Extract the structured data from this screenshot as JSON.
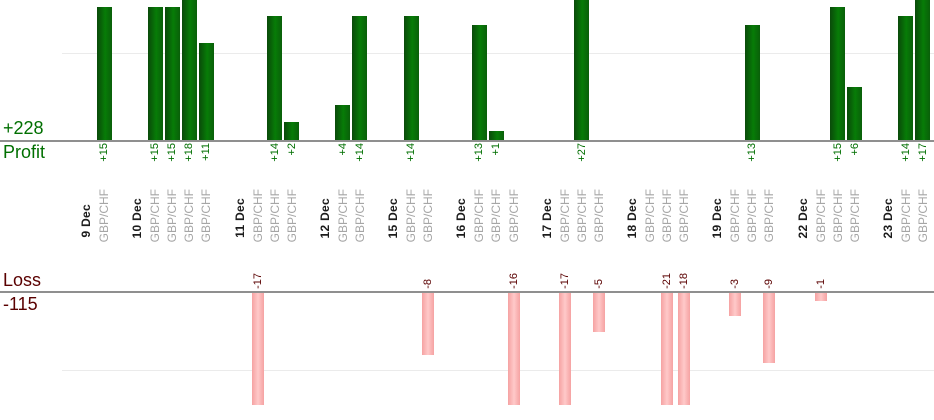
{
  "chart_data": {
    "type": "bar",
    "pair": "GBP/CHF",
    "profit": {
      "total_label": "+228",
      "axis_label": "Profit",
      "total_value": 228
    },
    "loss": {
      "axis_label": "Loss",
      "total_label": "-115",
      "total_value": -115
    },
    "groups": [
      {
        "date": "9 Dec",
        "trades": [
          15
        ]
      },
      {
        "date": "10 Dec",
        "trades": [
          15,
          15,
          18,
          11
        ]
      },
      {
        "date": "11 Dec",
        "trades": [
          -17,
          14,
          2
        ]
      },
      {
        "date": "12 Dec",
        "trades": [
          4,
          14
        ]
      },
      {
        "date": "15 Dec",
        "trades": [
          14,
          -8
        ]
      },
      {
        "date": "16 Dec",
        "trades": [
          13,
          1,
          -16
        ]
      },
      {
        "date": "17 Dec",
        "trades": [
          -17,
          27,
          -5
        ]
      },
      {
        "date": "18 Dec",
        "trades": [
          0,
          -21,
          -18
        ]
      },
      {
        "date": "19 Dec",
        "trades": [
          -3,
          13,
          -9
        ]
      },
      {
        "date": "22 Dec",
        "trades": [
          -1,
          15,
          6
        ]
      },
      {
        "date": "23 Dec",
        "trades": [
          14,
          17
        ]
      }
    ],
    "layout_hints": {
      "orientation": "profit bars grow up from upper baseline, loss bars grow down from lower baseline",
      "bars_clipped_at_chart_edges": true,
      "gridline_profit_value": 10,
      "gridline_loss_value": -10,
      "legend": "none",
      "x_tick_per_trade": "GBP/CHF rotated 90deg, bold date label starts each day group"
    },
    "colors": {
      "profit_text": "#006f00",
      "loss_text": "#5a0000",
      "bar_green_left": "#0a4a0a",
      "bar_green_mid": "#077c07",
      "bar_green_right": "#0a5f0a",
      "bar_pink_left": "#f5a2a2",
      "bar_pink_mid": "#ffc9c9",
      "bar_pink_right": "#f5a2a2",
      "pair_grey": "#a6a6a6",
      "date_black": "#1c1c1c",
      "baseline_grey": "#8f8f8f",
      "gridline_grey": "#ebebeb"
    }
  }
}
